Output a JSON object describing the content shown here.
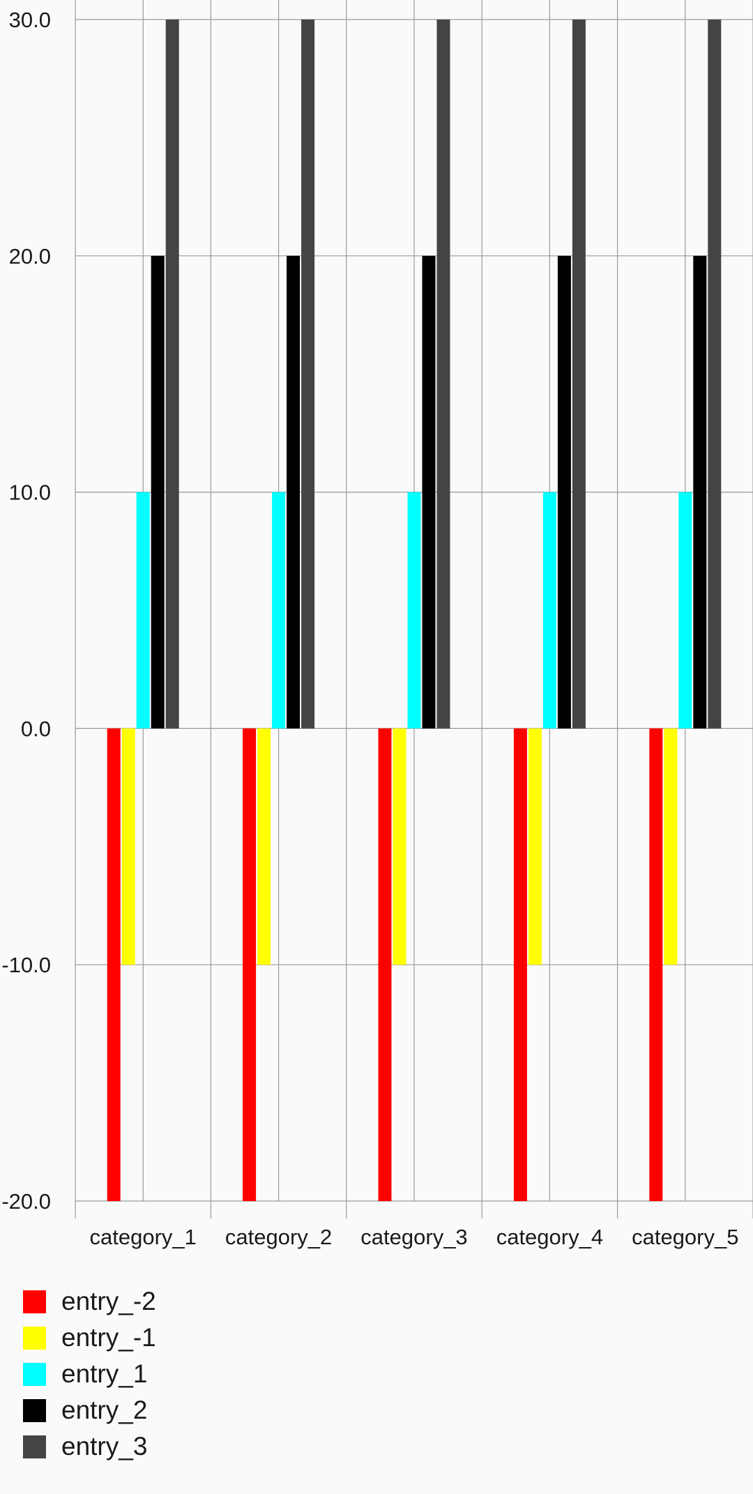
{
  "chart_data": {
    "type": "bar",
    "categories": [
      "category_1",
      "category_2",
      "category_3",
      "category_4",
      "category_5"
    ],
    "series": [
      {
        "name": "entry_-2",
        "color": "#ff0000",
        "values": [
          -20,
          -20,
          -20,
          -20,
          -20
        ]
      },
      {
        "name": "entry_-1",
        "color": "#ffff00",
        "values": [
          -10,
          -10,
          -10,
          -10,
          -10
        ]
      },
      {
        "name": "entry_1",
        "color": "#00ffff",
        "values": [
          10,
          10,
          10,
          10,
          10
        ]
      },
      {
        "name": "entry_2",
        "color": "#000000",
        "values": [
          20,
          20,
          20,
          20,
          20
        ]
      },
      {
        "name": "entry_3",
        "color": "#444444",
        "values": [
          30,
          30,
          30,
          30,
          30
        ]
      }
    ],
    "ylim": [
      -20,
      30
    ],
    "yticks": [
      "-20.0",
      "-10.0",
      "0.0",
      "10.0",
      "20.0",
      "30.0"
    ],
    "grid": true,
    "legend_position": "bottom-left"
  }
}
